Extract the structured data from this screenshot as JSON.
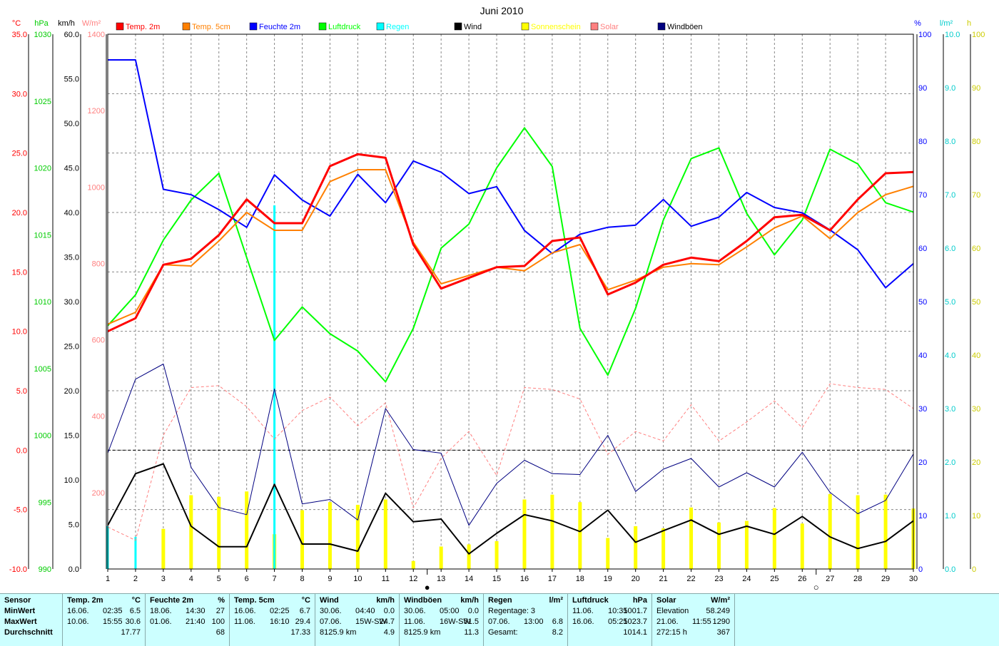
{
  "chart_data": {
    "type": "line",
    "title": "Juni 2010",
    "x": [
      1,
      2,
      3,
      4,
      5,
      6,
      7,
      8,
      9,
      10,
      11,
      12,
      13,
      14,
      15,
      16,
      17,
      18,
      19,
      20,
      21,
      22,
      23,
      24,
      25,
      26,
      27,
      28,
      29,
      30
    ],
    "axes": {
      "temp": {
        "unit": "°C",
        "ylim": [
          -10,
          35
        ],
        "ticks": [
          "35.0",
          "30.0",
          "25.0",
          "20.0",
          "15.0",
          "10.0",
          "5.0",
          "0.0",
          "-5.0",
          "-10.0"
        ]
      },
      "pressure": {
        "unit": "hPa",
        "ylim": [
          990,
          1030
        ],
        "ticks": [
          "1030",
          "1025",
          "1020",
          "1015",
          "1010",
          "1005",
          "1000",
          "995",
          "990"
        ]
      },
      "wind": {
        "unit": "km/h",
        "ylim": [
          0,
          60
        ],
        "ticks": [
          "60.0",
          "55.0",
          "50.0",
          "45.0",
          "40.0",
          "35.0",
          "30.0",
          "25.0",
          "20.0",
          "15.0",
          "10.0",
          "5.0",
          "0.0"
        ]
      },
      "solar": {
        "unit": "W/m²",
        "ylim": [
          0,
          1400
        ],
        "ticks": [
          "1400",
          "1200",
          "1000",
          "800",
          "600",
          "400",
          "200"
        ]
      },
      "humidity": {
        "unit": "%",
        "ylim": [
          0,
          100
        ],
        "ticks": [
          "100",
          "90",
          "80",
          "70",
          "60",
          "50",
          "40",
          "30",
          "20",
          "10",
          "0"
        ]
      },
      "rain": {
        "unit": "l/m²",
        "ylim": [
          0,
          10
        ],
        "ticks": [
          "10.0",
          "9.0",
          "8.0",
          "7.0",
          "6.0",
          "5.0",
          "4.0",
          "3.0",
          "2.0",
          "1.0",
          "0.0"
        ]
      },
      "sun": {
        "unit": "h",
        "ylim": [
          0,
          100
        ],
        "ticks": [
          "100",
          "90",
          "80",
          "70",
          "60",
          "50",
          "40",
          "30",
          "20",
          "10",
          "0"
        ]
      }
    },
    "legend": [
      {
        "name": "Temp. 2m",
        "color": "#ff0000"
      },
      {
        "name": "Temp. 5cm",
        "color": "#ff8000"
      },
      {
        "name": "Feuchte 2m",
        "color": "#0000ff"
      },
      {
        "name": "Luftdruck",
        "color": "#00ff00"
      },
      {
        "name": "Regen",
        "color": "#00ffff"
      },
      {
        "name": "Wind",
        "color": "#000000"
      },
      {
        "name": "Sonnenschein",
        "color": "#ffff00"
      },
      {
        "name": "Solar",
        "color": "#ff8080"
      },
      {
        "name": "Windböen",
        "color": "#000080"
      }
    ],
    "series": [
      {
        "name": "Temp. 2m",
        "axis": "temp",
        "color": "#ff0000",
        "width": 3,
        "values": [
          10.0,
          11.1,
          15.6,
          16.1,
          18.1,
          21.1,
          19.1,
          19.1,
          23.9,
          24.9,
          24.6,
          17.3,
          13.6,
          14.5,
          15.4,
          15.5,
          17.6,
          17.9,
          13.1,
          14.1,
          15.6,
          16.2,
          15.9,
          17.6,
          19.6,
          19.8,
          18.5,
          21.1,
          23.3,
          23.4
        ]
      },
      {
        "name": "Temp. 5cm",
        "axis": "temp",
        "color": "#ff8000",
        "width": 2,
        "values": [
          10.6,
          11.6,
          15.6,
          15.5,
          17.6,
          20.0,
          18.5,
          18.5,
          22.6,
          23.6,
          23.6,
          17.5,
          14.0,
          14.7,
          15.4,
          15.1,
          16.6,
          17.3,
          13.5,
          14.3,
          15.4,
          15.7,
          15.6,
          17.1,
          18.7,
          19.7,
          17.8,
          20.0,
          21.5,
          22.2
        ]
      },
      {
        "name": "Feuchte 2m",
        "axis": "humidity",
        "color": "#0000ff",
        "width": 2,
        "values": [
          95.2,
          95.2,
          71.0,
          70.0,
          67.2,
          63.9,
          73.7,
          69.0,
          66.0,
          73.8,
          68.5,
          76.3,
          74.2,
          70.2,
          71.5,
          63.3,
          59.0,
          62.6,
          63.9,
          64.3,
          69.1,
          64.1,
          65.8,
          70.4,
          67.6,
          66.6,
          63.4,
          59.7,
          52.6,
          57.1
        ]
      },
      {
        "name": "Luftdruck",
        "axis": "pressure",
        "color": "#00ff00",
        "width": 2,
        "values": [
          1008.2,
          1010.5,
          1014.6,
          1017.6,
          1019.6,
          1013.3,
          1007.1,
          1009.6,
          1007.6,
          1006.3,
          1004.0,
          1008.0,
          1014.0,
          1015.8,
          1020.0,
          1023.0,
          1020.1,
          1008.0,
          1004.5,
          1009.5,
          1016.1,
          1020.7,
          1021.5,
          1016.6,
          1013.5,
          1016.1,
          1021.4,
          1020.3,
          1017.4,
          1016.7
        ]
      },
      {
        "name": "Wind",
        "axis": "wind",
        "color": "#000000",
        "width": 2,
        "values": [
          4.9,
          10.7,
          11.8,
          4.8,
          2.5,
          2.5,
          9.5,
          2.8,
          2.8,
          2.0,
          8.5,
          5.3,
          5.6,
          1.7,
          4.0,
          6.1,
          5.4,
          4.2,
          6.6,
          3.0,
          4.3,
          5.5,
          3.9,
          4.8,
          3.9,
          5.9,
          3.6,
          2.3,
          3.1,
          5.4
        ]
      },
      {
        "name": "Windböen",
        "axis": "wind",
        "color": "#000080",
        "width": 1,
        "values": [
          13.0,
          21.3,
          23.0,
          11.4,
          6.9,
          6.1,
          20.2,
          7.3,
          7.8,
          5.5,
          18.0,
          13.4,
          13.0,
          4.9,
          9.6,
          12.2,
          10.7,
          10.6,
          15.0,
          8.7,
          11.2,
          12.4,
          9.2,
          10.8,
          9.2,
          13.1,
          8.6,
          6.2,
          7.7,
          12.9
        ]
      },
      {
        "name": "Solar",
        "axis": "solar",
        "color": "#ff8080",
        "width": 1,
        "dashed": true,
        "values": [
          110,
          75,
          350,
          475,
          480,
          425,
          340,
          415,
          450,
          375,
          435,
          160,
          290,
          360,
          245,
          475,
          470,
          445,
          300,
          360,
          335,
          430,
          335,
          385,
          440,
          370,
          485,
          475,
          470,
          420
        ]
      }
    ],
    "bars": [
      {
        "name": "Sonnenschein",
        "axis": "sun",
        "color": "#ffff00",
        "values": [
          0,
          0,
          7.5,
          13.8,
          13.5,
          14.5,
          6.5,
          11.0,
          12.5,
          12.0,
          13.0,
          1.5,
          4.2,
          4.6,
          5.2,
          13.0,
          13.9,
          12.5,
          5.8,
          8.0,
          7.6,
          11.5,
          8.7,
          9.0,
          11.4,
          8.5,
          14.0,
          13.8,
          13.9,
          11.3
        ]
      },
      {
        "name": "Regen",
        "axis": "rain",
        "color": "#00ffff",
        "values": [
          0.8,
          0.6,
          0,
          0,
          0,
          0,
          6.8,
          0,
          0,
          0,
          0,
          0,
          0,
          0,
          0,
          0,
          0,
          0,
          0,
          0,
          0,
          0,
          0,
          0,
          0,
          0,
          0,
          0,
          0,
          0
        ]
      }
    ],
    "x_markers": [
      {
        "x": 12.5,
        "symbol": "●"
      },
      {
        "x": 26.5,
        "symbol": "○"
      }
    ],
    "grid": true
  },
  "stats": {
    "row_labels": {
      "sensor": "Sensor",
      "min": "MinWert",
      "max": "MaxWert",
      "avg": "Durchschnitt"
    },
    "columns": [
      {
        "title": "Temp. 2m",
        "unit": "°C",
        "min": [
          "16.06.",
          "02:35",
          "6.5"
        ],
        "max": [
          "10.06.",
          "15:55",
          "30.6"
        ],
        "avg": [
          "",
          "",
          "17.77"
        ]
      },
      {
        "title": "Feuchte 2m",
        "unit": "%",
        "min": [
          "18.06.",
          "14:30",
          "27"
        ],
        "max": [
          "01.06.",
          "21:40",
          "100"
        ],
        "avg": [
          "",
          "",
          "68"
        ]
      },
      {
        "title": "Temp. 5cm",
        "unit": "°C",
        "min": [
          "16.06.",
          "02:25",
          "6.7"
        ],
        "max": [
          "11.06.",
          "16:10",
          "29.4"
        ],
        "avg": [
          "",
          "",
          "17.33"
        ]
      },
      {
        "title": "Wind",
        "unit": "km/h",
        "min": [
          "30.06.",
          "04:40",
          "0.0"
        ],
        "max": [
          "07.06.",
          "15W-SW",
          "24.7"
        ],
        "avg": [
          "8125.9 km",
          "",
          "4.9"
        ]
      },
      {
        "title": "Windböen",
        "unit": "km/h",
        "min": [
          "30.06.",
          "05:00",
          "0.0"
        ],
        "max": [
          "11.06.",
          "16W-SW",
          "51.5"
        ],
        "avg": [
          "8125.9 km",
          "",
          "11.3"
        ]
      },
      {
        "title": "Regen",
        "unit": "l/m²",
        "min": [
          "Regentage: 3",
          "",
          ""
        ],
        "max": [
          "07.06.",
          "13:00",
          "6.8"
        ],
        "avg": [
          "Gesamt:",
          "",
          "8.2"
        ]
      },
      {
        "title": "Luftdruck",
        "unit": "hPa",
        "min": [
          "11.06.",
          "10:35",
          "1001.7"
        ],
        "max": [
          "16.06.",
          "05:25",
          "1023.7"
        ],
        "avg": [
          "",
          "",
          "1014.1"
        ]
      },
      {
        "title": "Solar",
        "unit": "W/m²",
        "min": [
          "Elevation",
          "",
          "58.249"
        ],
        "max": [
          "21.06.",
          "11:55",
          "1290"
        ],
        "avg": [
          "272:15 h",
          "",
          "367"
        ]
      }
    ]
  }
}
